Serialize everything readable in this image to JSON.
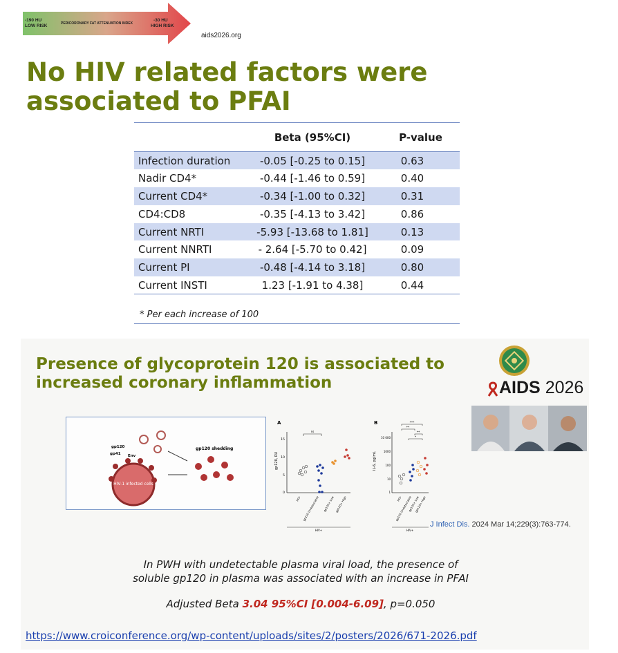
{
  "scale_bar": {
    "low_value": "-190 HU",
    "low_label": "LOW RISK",
    "middle_label": "PERICORONARY FAT ATTENUATION INDEX",
    "high_value": "-30 HU",
    "high_label": "HIGH RISK",
    "site": "aids2026.org"
  },
  "main_title": "No HIV related factors were associated to PFAI",
  "table": {
    "headers": [
      "",
      "Beta (95%CI)",
      "P-value"
    ],
    "rows": [
      {
        "factor": "Infection duration",
        "beta": "-0.05 [-0.25 to 0.15]",
        "p": "0.63"
      },
      {
        "factor": "Nadir CD4*",
        "beta": "-0.44 [-1.46 to 0.59]",
        "p": "0.40"
      },
      {
        "factor": "Current CD4*",
        "beta": "-0.34 [-1.00 to 0.32]",
        "p": "0.31"
      },
      {
        "factor": "CD4:CD8",
        "beta": "-0.35 [-4.13 to 3.42]",
        "p": "0.86"
      },
      {
        "factor": "Current NRTI",
        "beta": "-5.93 [-13.68 to 1.81]",
        "p": "0.13"
      },
      {
        "factor": "Current NNRTI",
        "beta": "- 2.64 [-5.70 to 0.42]",
        "p": "0.09"
      },
      {
        "factor": "Current PI",
        "beta": "-0.48 [-4.14 to 3.18]",
        "p": "0.80"
      },
      {
        "factor": "Current INSTI",
        "beta": "1.23 [-1.91 to 4.38]",
        "p": "0.44"
      }
    ],
    "footnote": "* Per each increase of 100"
  },
  "subtitle": "Presence of glycoprotein 120 is associated to increased coronary inflammation",
  "brand": {
    "name": "AIDS",
    "year": "2026"
  },
  "figure_a": {
    "labels": {
      "gp120": "gp120",
      "gp41": "gp41",
      "env": "Env",
      "cell": "HIV-1 infected cells",
      "shedding": "gp120 shedding"
    }
  },
  "figure_b": {
    "panel_a": {
      "letter": "A",
      "ylabel": "gp120, RU",
      "yticks": [
        "15",
        "10",
        "5",
        "0"
      ],
      "sig": "ns",
      "categories": [
        "HIV-",
        "gp120 Undetectable",
        "gp120+ Low",
        "gp120+ High"
      ],
      "group": "HIV+"
    },
    "panel_b": {
      "letter": "B",
      "ylabel": "IL-6, pg/mL",
      "yticks": [
        "10 000",
        "1000",
        "100",
        "10",
        "1"
      ],
      "sig": [
        "***",
        "**",
        "**",
        "*"
      ],
      "categories": [
        "HIV-",
        "gp120 Undetectable",
        "gp120+ Low",
        "gp120+ High"
      ],
      "group": "HIV+"
    }
  },
  "citation": {
    "journal": "J Infect Dis.",
    "details": " 2024 Mar 14;229(3):763-774."
  },
  "conclusion_line1": "In PWH with undetectable plasma viral load, the presence of",
  "conclusion_line2": "soluble gp120 in plasma was associated with an increase in PFAI",
  "adjusted": {
    "prefix": "Adjusted Beta ",
    "highlight": "3.04 95%CI [0.004-6.09]",
    "suffix": ", p=0.050"
  },
  "url": "https://www.croiconference.org/wp-content/uploads/sites/2/posters/2026/671-2026.pdf",
  "colors": {
    "title_green": "#6b7d10",
    "row_blue": "#cfd9f1",
    "highlight_red": "#c0281f",
    "link_blue": "#1a3fae"
  }
}
